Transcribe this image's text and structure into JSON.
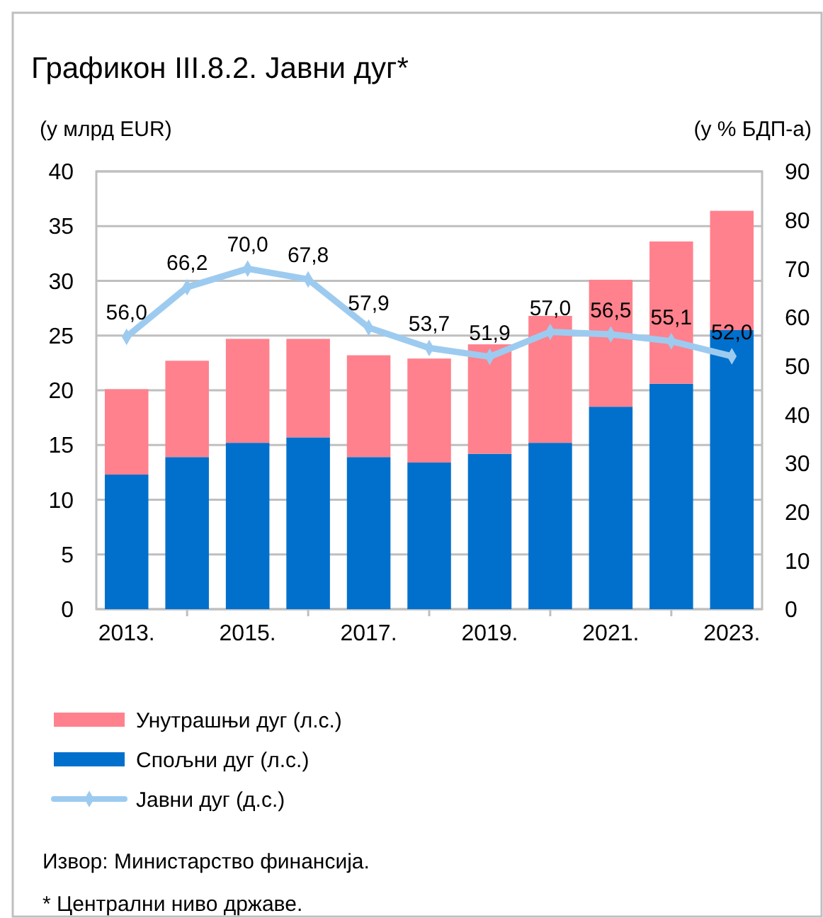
{
  "chart_data": {
    "type": "bar",
    "title": "Графикон III.8.2. Јавни дуг*",
    "ylabel": "(у млрд EUR)",
    "y2label": "(у % БДП-а)",
    "categories": [
      "2013.",
      null,
      "2015.",
      null,
      "2017.",
      null,
      "2019.",
      null,
      "2021.",
      null,
      "2023."
    ],
    "stacked": true,
    "series": [
      {
        "name": "Спољни дуг (л.с.)",
        "color": "#0070cc",
        "values": [
          12.3,
          13.9,
          15.2,
          15.7,
          13.9,
          13.4,
          14.2,
          15.2,
          18.5,
          20.6,
          25.5
        ]
      },
      {
        "name": "Унутрашњи дуг (л.с.)",
        "color": "#ff818d",
        "values": [
          7.8,
          8.8,
          9.5,
          9.0,
          9.3,
          9.5,
          10.0,
          11.6,
          11.6,
          13.0,
          10.9
        ]
      },
      {
        "name": "Јавни дуг (д.с.)",
        "type": "line",
        "axis": "y2",
        "color": "#9dcbf0",
        "marker": "diamond",
        "values": [
          56.0,
          66.2,
          70.0,
          67.8,
          57.9,
          53.7,
          51.9,
          57.0,
          56.5,
          55.1,
          52.0
        ],
        "value_labels": [
          "56,0",
          "66,2",
          "70,0",
          "67,8",
          "57,9",
          "53,7",
          "51,9",
          "57,0",
          "56,5",
          "55,1",
          "52,0"
        ]
      }
    ],
    "ylim": [
      0,
      40
    ],
    "yticks": [
      0,
      5,
      10,
      15,
      20,
      25,
      30,
      35,
      40
    ],
    "y2lim": [
      0,
      90
    ],
    "y2ticks": [
      0,
      10,
      20,
      30,
      40,
      50,
      60,
      70,
      80,
      90
    ],
    "grid": "y",
    "legend": "bottom",
    "annotations": [
      "Извор: Министарство финансија.",
      "* Централни ниво државе."
    ]
  }
}
